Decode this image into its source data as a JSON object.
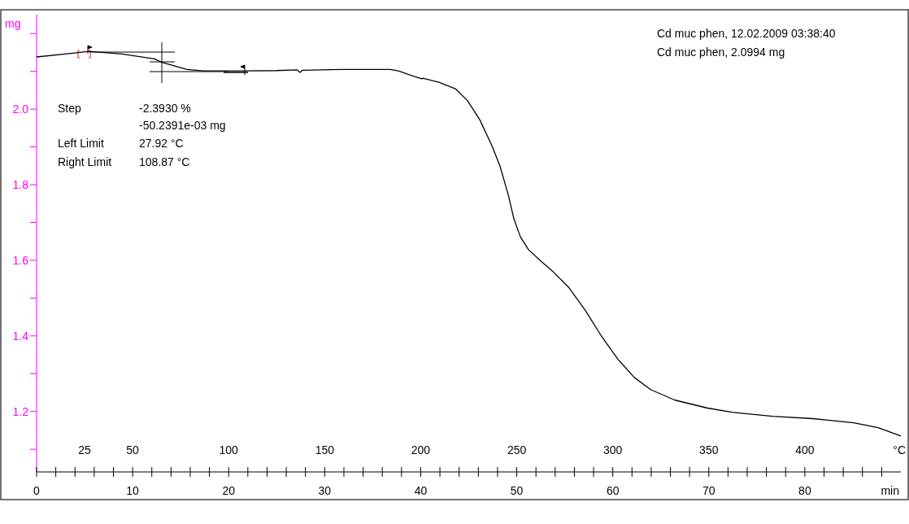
{
  "chart_data": {
    "type": "line",
    "ylabel": "mg",
    "xlabel": "min",
    "x2label": "°C",
    "annotations": [
      "Cd muc phen, 12.02.2009 03:38:40",
      "Cd muc phen, 2.0994 mg",
      "Step",
      "-2.3930 %",
      "-50.2391e-03 mg",
      "Left Limit",
      "27.92 °C",
      "Right Limit",
      "108.87 °C"
    ],
    "xlim": [
      0,
      90
    ],
    "xticks": [
      0,
      {
        "value": 2,
        "label": null
      },
      {
        "value": 4,
        "label": null
      },
      {
        "value": 6,
        "label": null
      },
      {
        "value": 8,
        "label": null
      },
      10,
      {
        "value": 12,
        "label": null
      },
      {
        "value": 14,
        "label": null
      },
      {
        "value": 16,
        "label": null
      },
      {
        "value": 18,
        "label": null
      },
      20,
      {
        "value": 22,
        "label": null
      },
      {
        "value": 24,
        "label": null
      },
      {
        "value": 26,
        "label": null
      },
      {
        "value": 28,
        "label": null
      },
      30,
      {
        "value": 32,
        "label": null
      },
      {
        "value": 34,
        "label": null
      },
      {
        "value": 36,
        "label": null
      },
      {
        "value": 38,
        "label": null
      },
      40,
      {
        "value": 42,
        "label": null
      },
      {
        "value": 44,
        "label": null
      },
      {
        "value": 46,
        "label": null
      },
      {
        "value": 48,
        "label": null
      },
      50,
      {
        "value": 52,
        "label": null
      },
      {
        "value": 54,
        "label": null
      },
      {
        "value": 56,
        "label": null
      },
      {
        "value": 58,
        "label": null
      },
      60,
      {
        "value": 62,
        "label": null
      },
      {
        "value": 64,
        "label": null
      },
      {
        "value": 66,
        "label": null
      },
      {
        "value": 68,
        "label": null
      },
      70,
      {
        "value": 72,
        "label": null
      },
      {
        "value": 74,
        "label": null
      },
      {
        "value": 76,
        "label": null
      },
      {
        "value": 78,
        "label": null
      },
      80,
      {
        "value": 82,
        "label": null
      },
      {
        "value": 84,
        "label": null
      },
      {
        "value": 86,
        "label": null
      },
      {
        "value": 88,
        "label": null
      }
    ],
    "x2lim": [
      0,
      450
    ],
    "x2ticks": [
      25,
      50,
      100,
      150,
      200,
      250,
      300,
      350,
      400
    ],
    "ylim": [
      1.04,
      2.25
    ],
    "yticks": [
      {
        "value": 1.1,
        "label": null
      },
      {
        "value": 1.2,
        "label": "1.2"
      },
      {
        "value": 1.3,
        "label": null
      },
      {
        "value": 1.4,
        "label": "1.4"
      },
      {
        "value": 1.5,
        "label": null
      },
      {
        "value": 1.6,
        "label": "1.6"
      },
      {
        "value": 1.7,
        "label": null
      },
      {
        "value": 1.8,
        "label": "1.8"
      },
      {
        "value": 1.9,
        "label": null
      },
      {
        "value": 2.0,
        "label": "2.0"
      },
      {
        "value": 2.1,
        "label": null
      },
      {
        "value": 2.2,
        "label": null
      }
    ],
    "grid": false,
    "series": [
      {
        "color": "#000000",
        "x": [
          0,
          2.96,
          5.5,
          8.89,
          12.28,
          13.12,
          15.66,
          17.36,
          21.59,
          24.98,
          27.1,
          27.43,
          27.69,
          31.75,
          36.83,
          37.68,
          39.37,
          40.14,
          40.22,
          41.91,
          43.61,
          44.88,
          46.15,
          47.42,
          48.26,
          49.11,
          49.7,
          50.38,
          51.23,
          52.5,
          53.77,
          55.46,
          57.15,
          58.85,
          60.54,
          62.24,
          63.93,
          66.47,
          69.86,
          72.4,
          76.63,
          80.87,
          85.1,
          87.64,
          90
        ],
        "values": [
          2.138,
          2.146,
          2.153,
          2.146,
          2.133,
          2.123,
          2.105,
          2.101,
          2.101,
          2.102,
          2.104,
          2.097,
          2.103,
          2.105,
          2.105,
          2.101,
          2.086,
          2.08,
          2.082,
          2.071,
          2.054,
          2.022,
          1.972,
          1.903,
          1.849,
          1.774,
          1.71,
          1.662,
          1.628,
          1.598,
          1.57,
          1.527,
          1.467,
          1.398,
          1.338,
          1.29,
          1.258,
          1.23,
          1.209,
          1.198,
          1.187,
          1.181,
          1.17,
          1.157,
          1.135
        ]
      }
    ]
  }
}
